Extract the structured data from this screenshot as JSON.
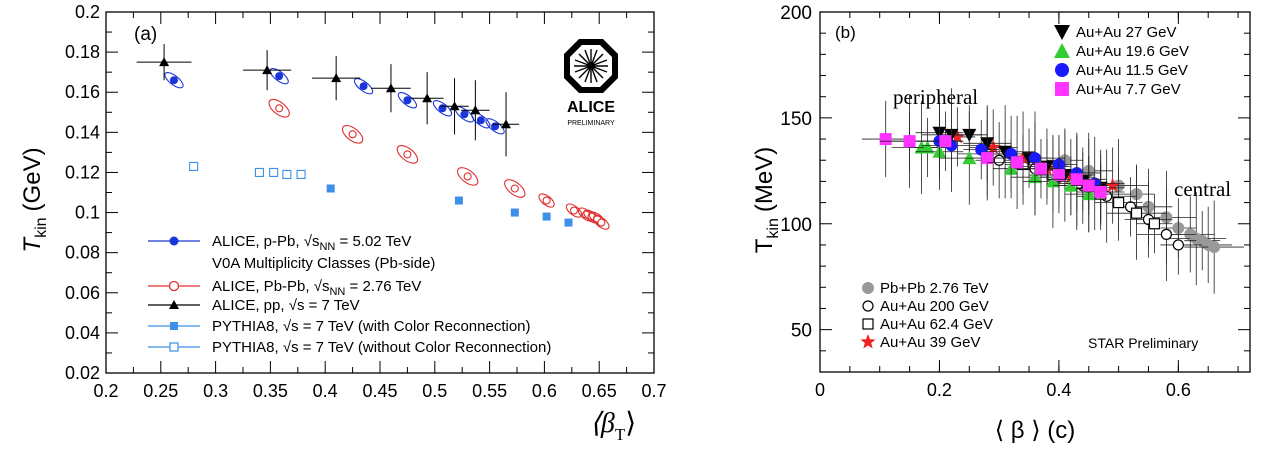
{
  "chart_data": [
    {
      "type": "scatter",
      "panel_label": "(a)",
      "ylabel": "T",
      "ylabel_sub": "kin",
      "ylabel_unit": "(GeV)",
      "xlabel": "⟨β",
      "xlabel_sub": "T",
      "xlabel_close": "⟩",
      "xlim": [
        0.2,
        0.7
      ],
      "ylim": [
        0.02,
        0.2
      ],
      "xticks": [
        "0.2",
        "0.25",
        "0.3",
        "0.35",
        "0.4",
        "0.45",
        "0.5",
        "0.55",
        "0.6",
        "0.65",
        "0.7"
      ],
      "yticks": [
        "0.02",
        "0.04",
        "0.06",
        "0.08",
        "0.1",
        "0.12",
        "0.14",
        "0.16",
        "0.18",
        "0.2"
      ],
      "logo_text": "ALICE",
      "logo_sub": "PRELIMINARY",
      "legend": [
        {
          "text": "ALICE, p-Pb, √s",
          "sub": "NN",
          "rest": " = 5.02 TeV",
          "extra": "V0A Multiplicity Classes (Pb-side)"
        },
        {
          "text": "ALICE, Pb-Pb, √s",
          "sub": "NN",
          "rest": " = 2.76 TeV"
        },
        {
          "text": "ALICE, pp, √s = 7 TeV"
        },
        {
          "text": "PYTHIA8, √s = 7 TeV (with Color Reconnection)"
        },
        {
          "text": "PYTHIA8, √s = 7 TeV (without Color Reconnection)"
        }
      ],
      "series": [
        {
          "name": "ALICE, p-Pb",
          "color": "#1a35d8",
          "x": [
            0.262,
            0.358,
            0.435,
            0.475,
            0.507,
            0.527,
            0.542,
            0.555
          ],
          "y": [
            0.166,
            0.168,
            0.163,
            0.156,
            0.152,
            0.149,
            0.146,
            0.143
          ]
        },
        {
          "name": "ALICE, Pb-Pb",
          "color": "#e03030",
          "x": [
            0.358,
            0.425,
            0.475,
            0.53,
            0.573,
            0.602,
            0.627,
            0.638,
            0.643,
            0.648,
            0.652
          ],
          "y": [
            0.152,
            0.139,
            0.129,
            0.118,
            0.112,
            0.106,
            0.101,
            0.099,
            0.098,
            0.097,
            0.095
          ]
        },
        {
          "name": "ALICE, pp",
          "color": "#000000",
          "x": [
            0.253,
            0.347,
            0.41,
            0.46,
            0.493,
            0.518,
            0.537,
            0.565
          ],
          "y": [
            0.175,
            0.171,
            0.167,
            0.162,
            0.157,
            0.153,
            0.151,
            0.144
          ]
        },
        {
          "name": "PYTHIA8 (with CR)",
          "color": "#3d8fe8",
          "x": [
            0.405,
            0.522,
            0.573,
            0.602,
            0.622
          ],
          "y": [
            0.112,
            0.106,
            0.1,
            0.098,
            0.095
          ]
        },
        {
          "name": "PYTHIA8 (without CR)",
          "color": "#3d8fe8",
          "x": [
            0.28,
            0.34,
            0.353,
            0.365,
            0.378
          ],
          "y": [
            0.123,
            0.12,
            0.12,
            0.119,
            0.119
          ]
        }
      ]
    },
    {
      "type": "scatter",
      "panel_label": "(b)",
      "ylabel": "T",
      "ylabel_sub": "kin",
      "ylabel_unit": "(MeV)",
      "xlabel": "⟨ β ⟩ (c)",
      "xlim": [
        0,
        0.72
      ],
      "ylim": [
        30,
        200
      ],
      "xticks": [
        "0",
        "0.2",
        "0.4",
        "0.6"
      ],
      "xtick_values": [
        0,
        0.2,
        0.4,
        0.6
      ],
      "yticks": [
        "50",
        "100",
        "150",
        "200"
      ],
      "ytick_values": [
        50,
        100,
        150,
        200
      ],
      "annotations": {
        "peripheral": "peripheral",
        "central": "central",
        "star": "STAR Preliminary"
      },
      "legend_top": [
        {
          "text": "Au+Au 27    GeV",
          "color": "#000000",
          "marker": "tri-down"
        },
        {
          "text": "Au+Au 19.6 GeV",
          "color": "#33cc33",
          "marker": "tri-up"
        },
        {
          "text": "Au+Au 11.5 GeV",
          "color": "#1a1aff",
          "marker": "circle"
        },
        {
          "text": "Au+Au 7.7    GeV",
          "color": "#ff33ff",
          "marker": "square"
        }
      ],
      "legend_bottom": [
        {
          "text": "Pb+Pb 2.76 TeV",
          "color": "#999999",
          "marker": "circle"
        },
        {
          "text": "Au+Au 200  GeV",
          "color": "#000000",
          "marker": "circle-open"
        },
        {
          "text": "Au+Au 62.4 GeV",
          "color": "#000000",
          "marker": "square-open"
        },
        {
          "text": "Au+Au 39    GeV",
          "color": "#ee2222",
          "marker": "star"
        }
      ],
      "series": [
        {
          "name": "Pb+Pb 2.76 TeV",
          "marker": "circle",
          "color": "#999999",
          "x": [
            0.41,
            0.45,
            0.5,
            0.53,
            0.55,
            0.58,
            0.6,
            0.62,
            0.63,
            0.64,
            0.65,
            0.66
          ],
          "y": [
            130,
            125,
            118,
            114,
            108,
            103,
            98,
            95,
            93,
            92,
            90,
            89
          ]
        },
        {
          "name": "Au+Au 200 GeV",
          "marker": "circle-open",
          "color": "#000000",
          "x": [
            0.3,
            0.36,
            0.4,
            0.44,
            0.48,
            0.52,
            0.55,
            0.58,
            0.6
          ],
          "y": [
            130,
            126,
            122,
            118,
            113,
            108,
            102,
            95,
            90
          ]
        },
        {
          "name": "Au+Au 62.4 GeV",
          "marker": "square-open",
          "color": "#000000",
          "x": [
            0.28,
            0.34,
            0.39,
            0.43,
            0.47,
            0.5,
            0.53,
            0.56
          ],
          "y": [
            133,
            128,
            123,
            119,
            114,
            110,
            105,
            100
          ]
        },
        {
          "name": "Au+Au 39 GeV",
          "marker": "star",
          "color": "#ee2222",
          "x": [
            0.23,
            0.29,
            0.34,
            0.38,
            0.42,
            0.45,
            0.47,
            0.49
          ],
          "y": [
            141,
            136,
            131,
            126,
            122,
            118,
            115,
            118
          ]
        },
        {
          "name": "Au+Au 27 GeV",
          "marker": "tri-down",
          "color": "#000000",
          "x": [
            0.2,
            0.22,
            0.25,
            0.28,
            0.31,
            0.35,
            0.38,
            0.41,
            0.44,
            0.47
          ],
          "y": [
            143,
            142,
            142,
            138,
            134,
            131,
            127,
            123,
            120,
            117
          ]
        },
        {
          "name": "Au+Au 19.6 GeV",
          "marker": "tri-up",
          "color": "#33cc33",
          "x": [
            0.17,
            0.18,
            0.2,
            0.25,
            0.32,
            0.36,
            0.39,
            0.42,
            0.45
          ],
          "y": [
            136,
            136,
            134,
            131,
            126,
            122,
            120,
            118,
            114
          ]
        },
        {
          "name": "Au+Au 11.5 GeV",
          "marker": "circle",
          "color": "#1a1aff",
          "x": [
            0.15,
            0.2,
            0.22,
            0.27,
            0.32,
            0.36,
            0.4,
            0.43,
            0.46
          ],
          "y": [
            139,
            139,
            137,
            135,
            133,
            131,
            128,
            124,
            119
          ]
        },
        {
          "name": "Au+Au 7.7 GeV",
          "marker": "square",
          "color": "#ff33ff",
          "x": [
            0.11,
            0.15,
            0.21,
            0.28,
            0.33,
            0.37,
            0.4,
            0.43,
            0.45,
            0.47
          ],
          "y": [
            140,
            139,
            139,
            131,
            129,
            126,
            123,
            121,
            118,
            115
          ]
        }
      ]
    }
  ]
}
